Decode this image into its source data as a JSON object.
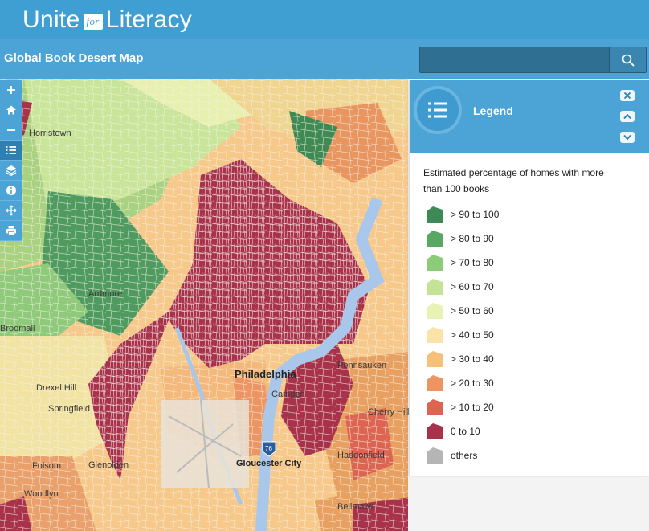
{
  "brand": {
    "name_left": "Unite",
    "name_badge": "for",
    "name_right": "Literacy"
  },
  "header": {
    "title": "Global Book Desert Map",
    "search_value": ""
  },
  "toolbar": {
    "items": [
      {
        "name": "zoom-in",
        "glyph": "+"
      },
      {
        "name": "home",
        "glyph": "home"
      },
      {
        "name": "zoom-out",
        "glyph": "−"
      },
      {
        "name": "legend",
        "glyph": "list"
      },
      {
        "name": "layers",
        "glyph": "layers"
      },
      {
        "name": "info",
        "glyph": "info"
      },
      {
        "name": "locate",
        "glyph": "locate"
      },
      {
        "name": "print",
        "glyph": "print"
      }
    ]
  },
  "legend": {
    "title": "Legend",
    "description": "Estimated percentage of homes with more than 100 books",
    "items": [
      {
        "label": "> 90 to 100",
        "color": "#3d8a56"
      },
      {
        "label": "> 80 to 90",
        "color": "#58a863"
      },
      {
        "label": "> 70 to 80",
        "color": "#8ccb78"
      },
      {
        "label": "> 60 to 70",
        "color": "#c3e497"
      },
      {
        "label": "> 50 to 60",
        "color": "#e9f2b5"
      },
      {
        "label": "> 40 to 50",
        "color": "#fbe2a9"
      },
      {
        "label": "> 30 to 40",
        "color": "#f6bf7a"
      },
      {
        "label": "> 20 to 30",
        "color": "#ec9562"
      },
      {
        "label": "> 10 to 20",
        "color": "#dc6450"
      },
      {
        "label": "0 to 10",
        "color": "#a8324a"
      },
      {
        "label": "others",
        "color": "#b5b5b5"
      }
    ]
  },
  "map": {
    "place_labels": [
      "Horristown",
      "Ardmore",
      "Philadelphia",
      "Camden",
      "Pennsauken",
      "Cherry Hill",
      "Haddonfield",
      "Gloucester City",
      "Springfield",
      "Folsom",
      "Woodlyn",
      "Glenolden",
      "Bellmawr",
      "Drexel Hill",
      "Broomall"
    ],
    "route_shield": "76"
  }
}
